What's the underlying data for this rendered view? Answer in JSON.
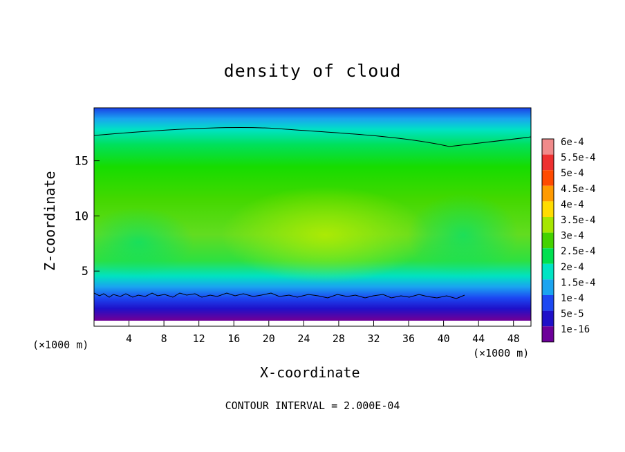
{
  "chart_data": {
    "type": "heatmap",
    "title": "density of cloud",
    "xlabel": "X-coordinate",
    "ylabel": "Z-coordinate",
    "x_unit_label": "(×1000 m)",
    "footer": "CONTOUR INTERVAL = 2.000E-04",
    "xlim": [
      0,
      50
    ],
    "ylim": [
      0,
      19.8
    ],
    "x_ticks": [
      4,
      8,
      12,
      16,
      20,
      24,
      28,
      32,
      36,
      40,
      44,
      48
    ],
    "y_ticks": [
      5,
      10,
      15
    ],
    "colorbar": {
      "labels": [
        "6e-4",
        "5.5e-4",
        "5e-4",
        "4.5e-4",
        "4e-4",
        "3.5e-4",
        "3e-4",
        "2.5e-4",
        "2e-4",
        "1.5e-4",
        "1e-4",
        "5e-5",
        "1e-16"
      ],
      "colors": [
        "#f08a8a",
        "#ee3030",
        "#ff4a00",
        "#ff9a00",
        "#ffdc00",
        "#a6e600",
        "#44d200",
        "#00e050",
        "#00e4c4",
        "#1aa4f0",
        "#1c48f2",
        "#1f10c8",
        "#6c0099"
      ]
    },
    "contour_levels": [
      "2e-4"
    ],
    "field_summary": [
      {
        "z_km": 0.5,
        "value": "1e-16"
      },
      {
        "z_km": 1.5,
        "value": "5e-5"
      },
      {
        "z_km": 2.5,
        "value": "1e-4 to 1.5e-4"
      },
      {
        "z_km": 4,
        "value": "2e-4 to 2.5e-4"
      },
      {
        "z_km": 8,
        "value": "3e-4 to 3.5e-4"
      },
      {
        "z_km": 13,
        "value": "3e-4"
      },
      {
        "z_km": 17,
        "value": "2e-4"
      },
      {
        "z_km": 19.5,
        "value": "1e-4"
      }
    ]
  }
}
